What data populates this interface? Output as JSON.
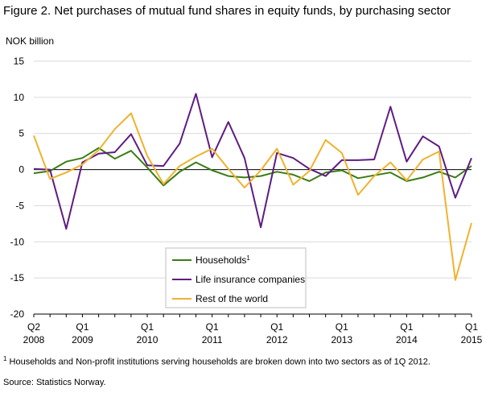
{
  "title": "Figure 2. Net purchases of mutual fund shares in equity funds, by purchasing sector",
  "footnote": {
    "marker": "1",
    "text": " Households and Non-profit institutions serving households are broken down into two sectors as of 1Q 2012."
  },
  "source": "Source: Statistics Norway.",
  "chart_data": {
    "type": "line",
    "ylabel": "NOK billion",
    "ylim": [
      -20,
      15
    ],
    "yticks": [
      15,
      10,
      5,
      0,
      -5,
      -10,
      -15,
      -20
    ],
    "grid": "horizontal",
    "legend_position": "bottom-center",
    "x": [
      "2008Q2",
      "2008Q3",
      "2008Q4",
      "2009Q1",
      "2009Q2",
      "2009Q3",
      "2009Q4",
      "2010Q1",
      "2010Q2",
      "2010Q3",
      "2010Q4",
      "2011Q1",
      "2011Q2",
      "2011Q3",
      "2011Q4",
      "2012Q1",
      "2012Q2",
      "2012Q3",
      "2012Q4",
      "2013Q1",
      "2013Q2",
      "2013Q3",
      "2013Q4",
      "2014Q1",
      "2014Q2",
      "2014Q3",
      "2014Q4",
      "2015Q1"
    ],
    "x_tick_labels": [
      {
        "index": 0,
        "line1": "Q2",
        "line2": "2008"
      },
      {
        "index": 3,
        "line1": "Q1",
        "line2": "2009"
      },
      {
        "index": 7,
        "line1": "Q1",
        "line2": "2010"
      },
      {
        "index": 11,
        "line1": "Q1",
        "line2": "2011"
      },
      {
        "index": 15,
        "line1": "Q1",
        "line2": "2012"
      },
      {
        "index": 19,
        "line1": "Q1",
        "line2": "2013"
      },
      {
        "index": 23,
        "line1": "Q1",
        "line2": "2014"
      },
      {
        "index": 27,
        "line1": "Q1",
        "line2": "2015"
      }
    ],
    "series": [
      {
        "name": "Households",
        "name_sup": "1",
        "color": "#3a7d15",
        "values": [
          -0.5,
          -0.2,
          1.1,
          1.6,
          3.0,
          1.5,
          2.6,
          0.3,
          -2.2,
          -0.3,
          1.0,
          -0.1,
          -0.9,
          -1.1,
          -0.9,
          -0.3,
          -0.7,
          -1.6,
          -0.4,
          -0.1,
          -1.2,
          -0.8,
          -0.4,
          -1.6,
          -1.1,
          -0.3,
          -1.1,
          0.5
        ]
      },
      {
        "name": "Life insurance companies",
        "name_sup": "",
        "color": "#5e1c82",
        "values": [
          0.1,
          0.0,
          -8.2,
          1.0,
          2.2,
          2.4,
          4.9,
          0.6,
          0.5,
          3.6,
          10.5,
          1.7,
          6.6,
          1.6,
          -8.0,
          2.3,
          1.6,
          0.1,
          -0.9,
          1.3,
          1.3,
          1.4,
          8.7,
          1.1,
          4.6,
          3.2,
          -3.9,
          1.6
        ]
      },
      {
        "name": "Rest of the world",
        "name_sup": "",
        "color": "#f0b22e",
        "values": [
          4.7,
          -1.3,
          -0.4,
          0.7,
          2.7,
          5.6,
          7.8,
          1.9,
          -2.0,
          0.5,
          1.8,
          2.9,
          0.1,
          -2.5,
          -0.1,
          2.9,
          -2.1,
          -0.2,
          4.1,
          2.3,
          -3.5,
          -0.9,
          1.0,
          -1.5,
          1.4,
          2.5,
          -15.3,
          -7.4
        ]
      }
    ]
  }
}
